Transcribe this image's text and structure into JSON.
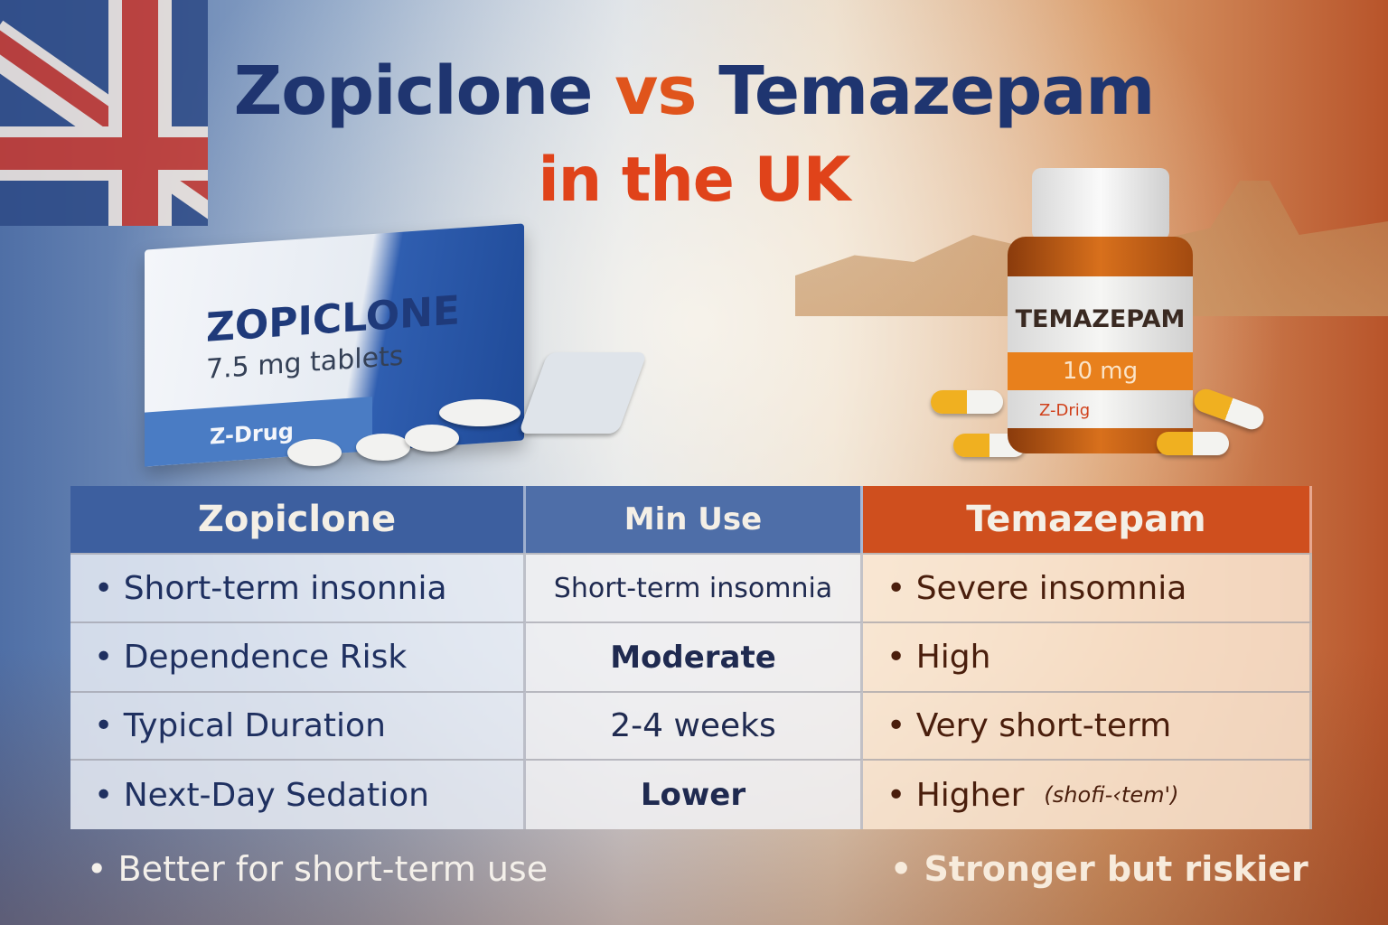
{
  "title": {
    "drug_a": "Zopiclone",
    "vs": "vs",
    "drug_b": "Temazepam",
    "subtitle": "in the UK"
  },
  "zopiclone_pack": {
    "name": "ZOPICLONE",
    "dose": "7.5 mg tablets",
    "brand": "Z-Drug"
  },
  "temazepam_bottle": {
    "name": "TEMAZEPAM",
    "dose": "10 mg",
    "brand": "Z-Drig"
  },
  "table": {
    "headers": [
      "Zopiclone",
      "Min Use",
      "Temazepam"
    ],
    "rows": [
      {
        "left": "Short-term insonnia",
        "middle": "Short-term insomnia",
        "right": "Severe insomnia"
      },
      {
        "left": "Dependence Risk",
        "middle": "Moderate",
        "right": "High"
      },
      {
        "left": "Typical Duration",
        "middle": "2-4 weeks",
        "right": "Very short-term"
      },
      {
        "left": "Next-Day Sedation",
        "middle": "Lower",
        "right": "Higher",
        "right_note": "(shofi-‹tem')"
      }
    ]
  },
  "footer": {
    "left": "Better for short-term use",
    "right": "Stronger but riskier"
  },
  "colors": {
    "blue": "#1f3570",
    "orange": "#e0541c",
    "header_blue": "#3d5f9f",
    "header_orange": "#cf4f1e"
  }
}
